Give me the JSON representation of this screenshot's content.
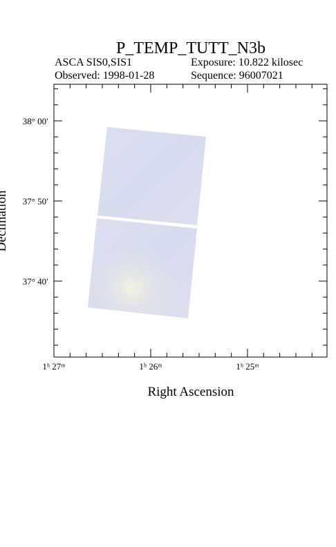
{
  "title": "P_TEMP_TUTT_N3b",
  "info": {
    "instrument": "ASCA SIS0,SIS1",
    "exposure": "Exposure: 10.822 kilosec",
    "observed": "Observed: 1998-01-28",
    "sequence": "Sequence: 96007021"
  },
  "x_axis": {
    "label": "Right Ascension",
    "ticks": [
      "1ʰ 27ᵐ",
      "1ʰ 26ᵐ",
      "1ʰ 25ᵐ"
    ]
  },
  "y_axis": {
    "label": "Declination",
    "ticks": [
      "38° 00′",
      "37° 50′",
      "37° 40′"
    ]
  }
}
